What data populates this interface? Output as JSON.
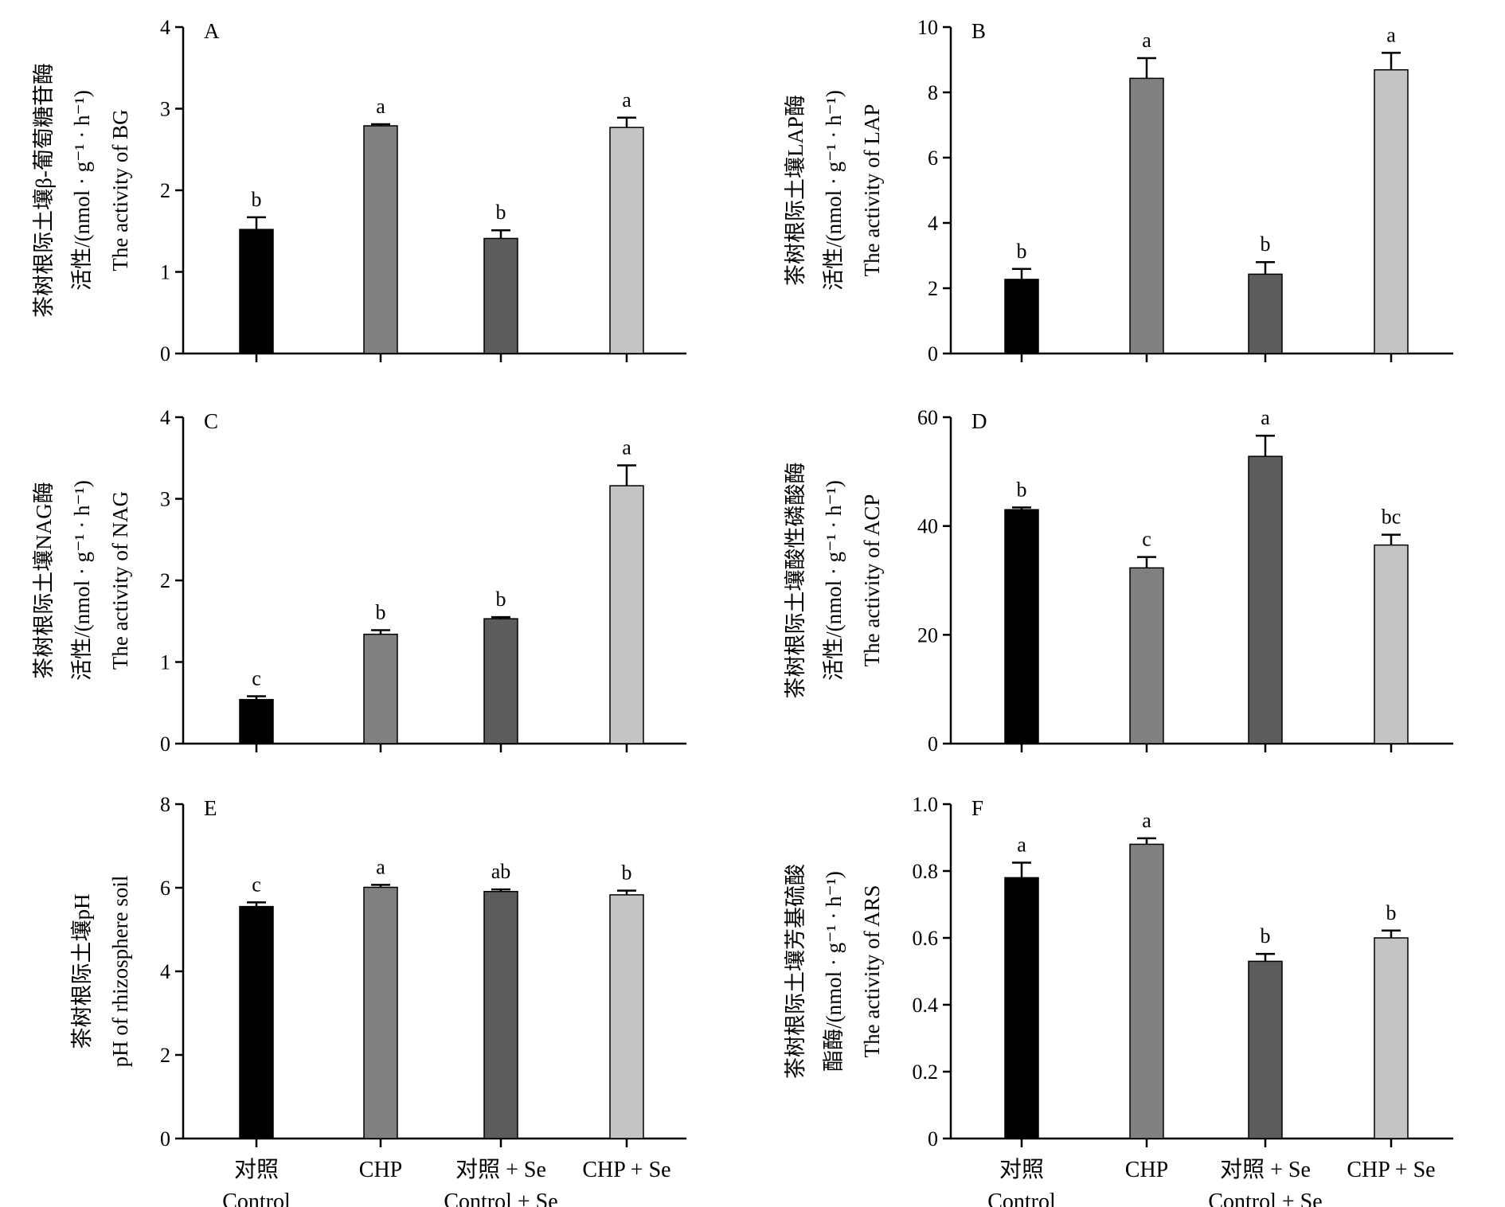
{
  "chart_data": [
    {
      "type": "bar",
      "panel": "A",
      "ylabel": [
        "茶树根际土壤β-葡萄糖苷酶",
        "活性/(nmol · g⁻¹ · h⁻¹)",
        "The activity of BG"
      ],
      "ylim": [
        0,
        4
      ],
      "yticks": [
        "0",
        "1",
        "2",
        "3",
        "4"
      ],
      "categories": [
        "对照 Control",
        "CHP",
        "对照 + Se Control + Se",
        "CHP + Se"
      ],
      "values": [
        1.52,
        2.79,
        1.41,
        2.77
      ],
      "errors": [
        0.15,
        0.02,
        0.1,
        0.12
      ],
      "letters": [
        "b",
        "a",
        "b",
        "a"
      ]
    },
    {
      "type": "bar",
      "panel": "B",
      "ylabel": [
        "茶树根际土壤LAP酶",
        "活性/(nmol · g⁻¹ · h⁻¹)",
        "The activity of LAP"
      ],
      "ylim": [
        0,
        10
      ],
      "yticks": [
        "0",
        "2",
        "4",
        "6",
        "8",
        "10"
      ],
      "categories": [
        "对照 Control",
        "CHP",
        "对照 + Se Control + Se",
        "CHP + Se"
      ],
      "values": [
        2.27,
        8.43,
        2.43,
        8.69
      ],
      "errors": [
        0.32,
        0.62,
        0.37,
        0.52
      ],
      "letters": [
        "b",
        "a",
        "b",
        "a"
      ]
    },
    {
      "type": "bar",
      "panel": "C",
      "ylabel": [
        "茶树根际土壤NAG酶",
        "活性/(nmol · g⁻¹ · h⁻¹)",
        "The activity of NAG"
      ],
      "ylim": [
        0,
        4
      ],
      "yticks": [
        "0",
        "1",
        "2",
        "3",
        "4"
      ],
      "categories": [
        "对照 Control",
        "CHP",
        "对照 + Se Control + Se",
        "CHP + Se"
      ],
      "values": [
        0.54,
        1.34,
        1.53,
        3.16
      ],
      "errors": [
        0.04,
        0.05,
        0.02,
        0.25
      ],
      "letters": [
        "c",
        "b",
        "b",
        "a"
      ]
    },
    {
      "type": "bar",
      "panel": "D",
      "ylabel": [
        "茶树根际土壤酸性磷酸酶",
        "活性/(nmol · g⁻¹ · h⁻¹)",
        "The activity of ACP"
      ],
      "ylim": [
        0,
        60
      ],
      "yticks": [
        "0",
        "20",
        "40",
        "60"
      ],
      "categories": [
        "对照 Control",
        "CHP",
        "对照 + Se Control + Se",
        "CHP + Se"
      ],
      "values": [
        43.0,
        32.3,
        52.8,
        36.5
      ],
      "errors": [
        0.4,
        2.0,
        3.8,
        1.9
      ],
      "letters": [
        "b",
        "c",
        "a",
        "bc"
      ]
    },
    {
      "type": "bar",
      "panel": "E",
      "ylabel": [
        "茶树根际土壤pH",
        "pH of rhizosphere soil"
      ],
      "ylim": [
        0,
        8
      ],
      "yticks": [
        "0",
        "2",
        "4",
        "6",
        "8"
      ],
      "categories": [
        "对照 Control",
        "CHP",
        "对照 + Se Control + Se",
        "CHP + Se"
      ],
      "values": [
        5.55,
        6.01,
        5.91,
        5.83
      ],
      "errors": [
        0.1,
        0.06,
        0.05,
        0.1
      ],
      "letters": [
        "c",
        "a",
        "ab",
        "b"
      ]
    },
    {
      "type": "bar",
      "panel": "F",
      "ylabel": [
        "茶树根际土壤芳基硫酸",
        "酯酶/(nmol · g⁻¹ · h⁻¹)",
        "The activity of ARS"
      ],
      "ylim": [
        0,
        1.0
      ],
      "yticks": [
        "0",
        "0.2",
        "0.4",
        "0.6",
        "0.8",
        "1.0"
      ],
      "categories": [
        "对照 Control",
        "CHP",
        "对照 + Se Control + Se",
        "CHP + Se"
      ],
      "values": [
        0.78,
        0.88,
        0.53,
        0.6
      ],
      "errors": [
        0.045,
        0.018,
        0.022,
        0.022
      ],
      "letters": [
        "a",
        "a",
        "b",
        "b"
      ]
    }
  ],
  "x_labels": {
    "line1": [
      "对照",
      "CHP",
      "对照 + Se",
      "CHP + Se"
    ],
    "line2": [
      "Control",
      "",
      "Control + Se",
      ""
    ]
  },
  "colors": {
    "bars": [
      "#000000",
      "#808080",
      "#5c5c5c",
      "#c4c4c4"
    ],
    "axis": "#000000"
  }
}
